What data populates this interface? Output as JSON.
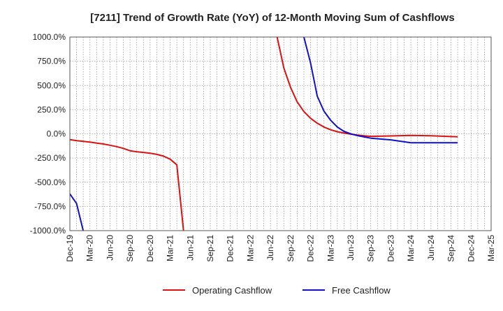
{
  "chart_data": {
    "type": "line",
    "title": "[7211]  Trend of Growth Rate (YoY) of 12-Month Moving Sum of Cashflows",
    "xlabel": "",
    "ylabel": "",
    "grid": true,
    "legend_position": "bottom",
    "ylim": [
      -1000,
      1000
    ],
    "yticks": [
      1000,
      750,
      500,
      250,
      0,
      -250,
      -500,
      -750,
      -1000
    ],
    "ytick_labels": [
      "1000.0%",
      "750.0%",
      "500.0%",
      "250.0%",
      "0.0%",
      "-250.0%",
      "-500.0%",
      "-750.0%",
      "-1000.0%"
    ],
    "x_start": "Dec-19",
    "x_end": "Mar-25",
    "xtick_labels": [
      "Dec-19",
      "Mar-20",
      "Jun-20",
      "Sep-20",
      "Dec-20",
      "Mar-21",
      "Jun-21",
      "Sep-21",
      "Dec-21",
      "Mar-22",
      "Jun-22",
      "Sep-22",
      "Dec-22",
      "Mar-23",
      "Jun-23",
      "Sep-23",
      "Dec-23",
      "Mar-24",
      "Jun-24",
      "Sep-24",
      "Dec-24",
      "Mar-25"
    ],
    "series": [
      {
        "name": "Operating Cashflow",
        "color": "#dd1111",
        "points": [
          [
            "Dec-19",
            -60
          ],
          [
            "Jan-20",
            -70
          ],
          [
            "Feb-20",
            -78
          ],
          [
            "Mar-20",
            -85
          ],
          [
            "Apr-20",
            -95
          ],
          [
            "May-20",
            -105
          ],
          [
            "Jun-20",
            -118
          ],
          [
            "Jul-20",
            -132
          ],
          [
            "Aug-20",
            -150
          ],
          [
            "Sep-20",
            -175
          ],
          [
            "Oct-20",
            -185
          ],
          [
            "Nov-20",
            -192
          ],
          [
            "Dec-20",
            -200
          ],
          [
            "Jan-21",
            -212
          ],
          [
            "Feb-21",
            -230
          ],
          [
            "Mar-21",
            -262
          ],
          [
            "Apr-21",
            -320
          ],
          [
            "May-21",
            -1000
          ],
          null,
          [
            "Jul-22",
            1000
          ],
          [
            "Aug-22",
            680
          ],
          [
            "Sep-22",
            480
          ],
          [
            "Oct-22",
            330
          ],
          [
            "Nov-22",
            230
          ],
          [
            "Dec-22",
            160
          ],
          [
            "Jan-23",
            110
          ],
          [
            "Feb-23",
            70
          ],
          [
            "Mar-23",
            42
          ],
          [
            "Apr-23",
            22
          ],
          [
            "May-23",
            8
          ],
          [
            "Jun-23",
            -3
          ],
          [
            "Jul-23",
            -12
          ],
          [
            "Aug-23",
            -20
          ],
          [
            "Sep-23",
            -26
          ],
          [
            "Dec-23",
            -22
          ],
          [
            "Mar-24",
            -16
          ],
          [
            "Jun-24",
            -20
          ],
          [
            "Sep-24",
            -28
          ],
          [
            "Oct-24",
            -30
          ]
        ]
      },
      {
        "name": "Free Cashflow",
        "color": "#1111cc",
        "points": [
          [
            "Dec-19",
            -620
          ],
          [
            "Jan-20",
            -720
          ],
          [
            "Feb-20",
            -1000
          ],
          null,
          [
            "Nov-22",
            1000
          ],
          [
            "Dec-22",
            730
          ],
          [
            "Jan-23",
            390
          ],
          [
            "Feb-23",
            235
          ],
          [
            "Mar-23",
            140
          ],
          [
            "Apr-23",
            70
          ],
          [
            "May-23",
            25
          ],
          [
            "Jun-23",
            0
          ],
          [
            "Jul-23",
            -18
          ],
          [
            "Aug-23",
            -32
          ],
          [
            "Sep-23",
            -45
          ],
          [
            "Dec-23",
            -62
          ],
          [
            "Mar-24",
            -92
          ],
          [
            "Jun-24",
            -92
          ],
          [
            "Sep-24",
            -92
          ],
          [
            "Oct-24",
            -92
          ]
        ]
      }
    ]
  }
}
